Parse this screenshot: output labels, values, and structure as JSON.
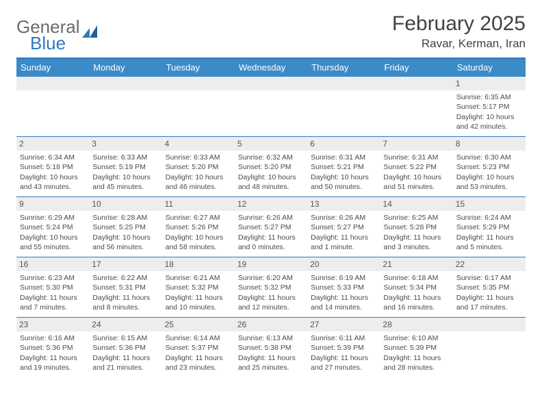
{
  "brand": {
    "part1": "General",
    "part2": "Blue"
  },
  "title": "February 2025",
  "location": "Ravar, Kerman, Iran",
  "colors": {
    "header_bg": "#3b8bc9",
    "border": "#2f7bbf",
    "daynum_bg": "#ededed",
    "text": "#4a4a4a",
    "title": "#414141"
  },
  "weekdays": [
    "Sunday",
    "Monday",
    "Tuesday",
    "Wednesday",
    "Thursday",
    "Friday",
    "Saturday"
  ],
  "grid": {
    "leading_blanks": 6,
    "days": [
      {
        "n": 1,
        "sr": "6:35 AM",
        "ss": "5:17 PM",
        "dl": "10 hours and 42 minutes."
      },
      {
        "n": 2,
        "sr": "6:34 AM",
        "ss": "5:18 PM",
        "dl": "10 hours and 43 minutes."
      },
      {
        "n": 3,
        "sr": "6:33 AM",
        "ss": "5:19 PM",
        "dl": "10 hours and 45 minutes."
      },
      {
        "n": 4,
        "sr": "6:33 AM",
        "ss": "5:20 PM",
        "dl": "10 hours and 46 minutes."
      },
      {
        "n": 5,
        "sr": "6:32 AM",
        "ss": "5:20 PM",
        "dl": "10 hours and 48 minutes."
      },
      {
        "n": 6,
        "sr": "6:31 AM",
        "ss": "5:21 PM",
        "dl": "10 hours and 50 minutes."
      },
      {
        "n": 7,
        "sr": "6:31 AM",
        "ss": "5:22 PM",
        "dl": "10 hours and 51 minutes."
      },
      {
        "n": 8,
        "sr": "6:30 AM",
        "ss": "5:23 PM",
        "dl": "10 hours and 53 minutes."
      },
      {
        "n": 9,
        "sr": "6:29 AM",
        "ss": "5:24 PM",
        "dl": "10 hours and 55 minutes."
      },
      {
        "n": 10,
        "sr": "6:28 AM",
        "ss": "5:25 PM",
        "dl": "10 hours and 56 minutes."
      },
      {
        "n": 11,
        "sr": "6:27 AM",
        "ss": "5:26 PM",
        "dl": "10 hours and 58 minutes."
      },
      {
        "n": 12,
        "sr": "6:26 AM",
        "ss": "5:27 PM",
        "dl": "11 hours and 0 minutes."
      },
      {
        "n": 13,
        "sr": "6:26 AM",
        "ss": "5:27 PM",
        "dl": "11 hours and 1 minute."
      },
      {
        "n": 14,
        "sr": "6:25 AM",
        "ss": "5:28 PM",
        "dl": "11 hours and 3 minutes."
      },
      {
        "n": 15,
        "sr": "6:24 AM",
        "ss": "5:29 PM",
        "dl": "11 hours and 5 minutes."
      },
      {
        "n": 16,
        "sr": "6:23 AM",
        "ss": "5:30 PM",
        "dl": "11 hours and 7 minutes."
      },
      {
        "n": 17,
        "sr": "6:22 AM",
        "ss": "5:31 PM",
        "dl": "11 hours and 8 minutes."
      },
      {
        "n": 18,
        "sr": "6:21 AM",
        "ss": "5:32 PM",
        "dl": "11 hours and 10 minutes."
      },
      {
        "n": 19,
        "sr": "6:20 AM",
        "ss": "5:32 PM",
        "dl": "11 hours and 12 minutes."
      },
      {
        "n": 20,
        "sr": "6:19 AM",
        "ss": "5:33 PM",
        "dl": "11 hours and 14 minutes."
      },
      {
        "n": 21,
        "sr": "6:18 AM",
        "ss": "5:34 PM",
        "dl": "11 hours and 16 minutes."
      },
      {
        "n": 22,
        "sr": "6:17 AM",
        "ss": "5:35 PM",
        "dl": "11 hours and 17 minutes."
      },
      {
        "n": 23,
        "sr": "6:16 AM",
        "ss": "5:36 PM",
        "dl": "11 hours and 19 minutes."
      },
      {
        "n": 24,
        "sr": "6:15 AM",
        "ss": "5:36 PM",
        "dl": "11 hours and 21 minutes."
      },
      {
        "n": 25,
        "sr": "6:14 AM",
        "ss": "5:37 PM",
        "dl": "11 hours and 23 minutes."
      },
      {
        "n": 26,
        "sr": "6:13 AM",
        "ss": "5:38 PM",
        "dl": "11 hours and 25 minutes."
      },
      {
        "n": 27,
        "sr": "6:11 AM",
        "ss": "5:39 PM",
        "dl": "11 hours and 27 minutes."
      },
      {
        "n": 28,
        "sr": "6:10 AM",
        "ss": "5:39 PM",
        "dl": "11 hours and 28 minutes."
      }
    ]
  },
  "labels": {
    "sunrise": "Sunrise:",
    "sunset": "Sunset:",
    "daylight": "Daylight:"
  }
}
